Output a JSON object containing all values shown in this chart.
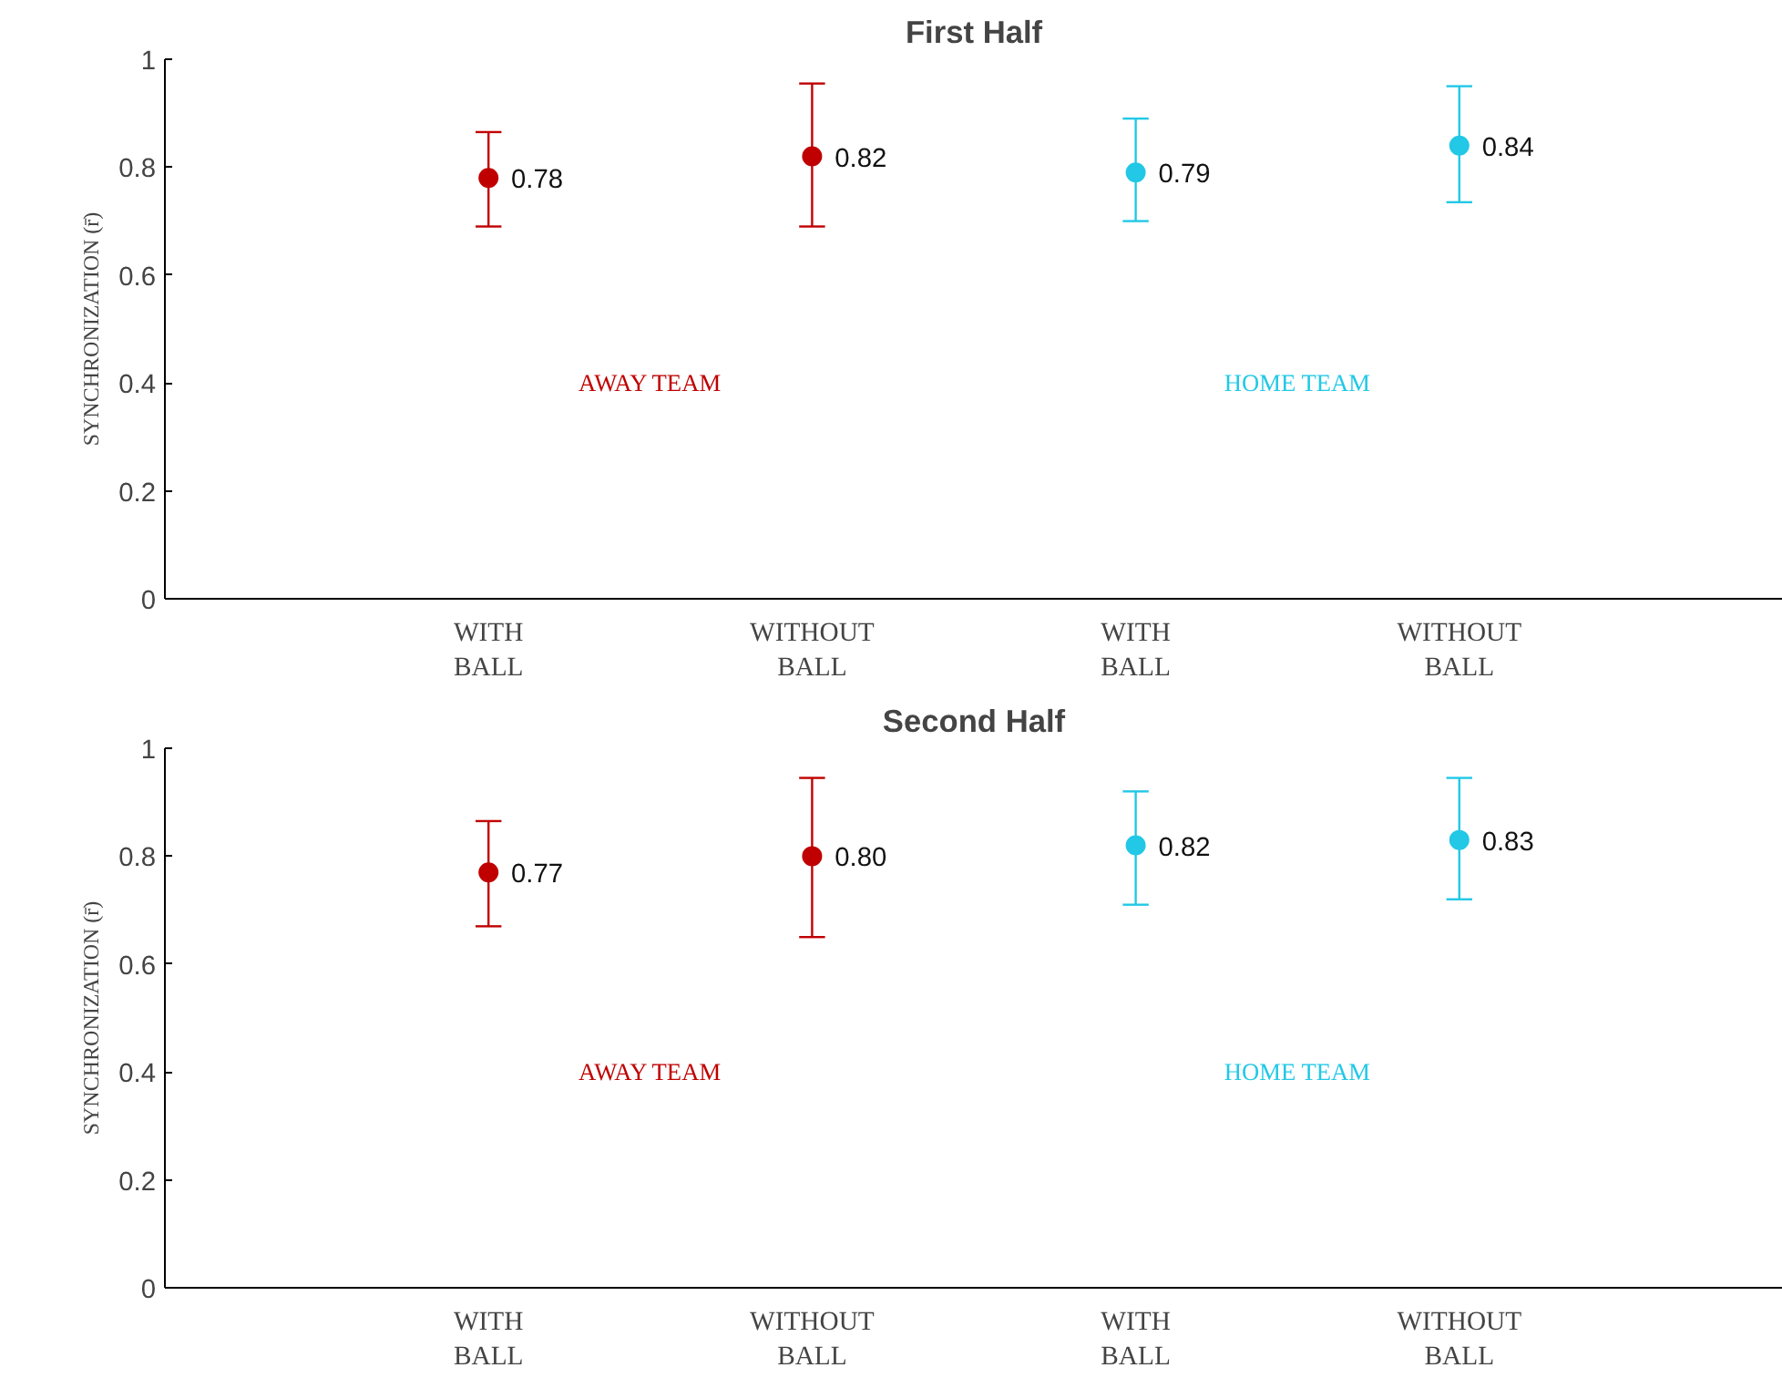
{
  "chart_data": [
    {
      "type": "scatter",
      "title": "First Half",
      "ylabel": "SYNCHRONIZATION (r̄)",
      "categories": [
        "WITH BALL",
        "WITHOUT BALL",
        "WITH BALL",
        "WITHOUT BALL"
      ],
      "ylim": [
        0,
        1
      ],
      "yticks": [
        0,
        0.2,
        0.4,
        0.6,
        0.8,
        1
      ],
      "grid": false,
      "marker": "circle",
      "series": [
        {
          "name": "AWAY TEAM",
          "color": "#c00000",
          "values": [
            0.78,
            0.82,
            null,
            null
          ],
          "errors": [
            [
              0.69,
              0.865
            ],
            [
              0.69,
              0.955
            ],
            null,
            null
          ],
          "value_labels": [
            "0.78",
            "0.82",
            null,
            null
          ]
        },
        {
          "name": "HOME TEAM",
          "color": "#22c8e6",
          "values": [
            null,
            null,
            0.79,
            0.84
          ],
          "errors": [
            null,
            null,
            [
              0.7,
              0.89
            ],
            [
              0.735,
              0.95
            ]
          ],
          "value_labels": [
            null,
            null,
            "0.79",
            "0.84"
          ]
        }
      ]
    },
    {
      "type": "scatter",
      "title": "Second Half",
      "ylabel": "SYNCHRONIZATION (r̄)",
      "categories": [
        "WITH BALL",
        "WITHOUT BALL",
        "WITH BALL",
        "WITHOUT BALL"
      ],
      "ylim": [
        0,
        1
      ],
      "yticks": [
        0,
        0.2,
        0.4,
        0.6,
        0.8,
        1
      ],
      "grid": false,
      "marker": "circle",
      "series": [
        {
          "name": "AWAY TEAM",
          "color": "#c00000",
          "values": [
            0.77,
            0.8,
            null,
            null
          ],
          "errors": [
            [
              0.67,
              0.865
            ],
            [
              0.65,
              0.945
            ],
            null,
            null
          ],
          "value_labels": [
            "0.77",
            "0.80",
            null,
            null
          ]
        },
        {
          "name": "HOME TEAM",
          "color": "#22c8e6",
          "values": [
            null,
            null,
            0.82,
            0.83
          ],
          "errors": [
            null,
            null,
            [
              0.71,
              0.92
            ],
            [
              0.72,
              0.945
            ]
          ],
          "value_labels": [
            null,
            null,
            "0.82",
            "0.83"
          ]
        }
      ]
    }
  ]
}
